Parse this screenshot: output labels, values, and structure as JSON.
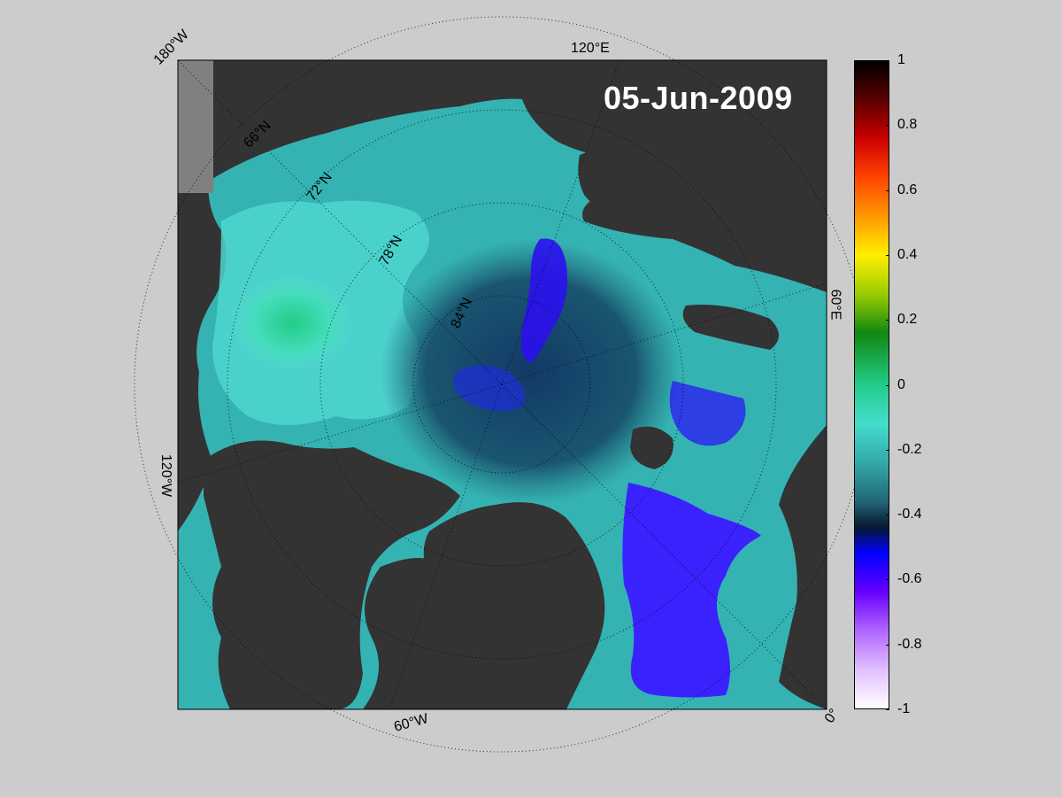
{
  "map": {
    "date": "05-Jun-2009",
    "longitude_labels": {
      "w180": "180°W",
      "e120": "120°E",
      "e60": "60°E",
      "w120": "120°W",
      "w60": "60°W",
      "zero": "0°"
    },
    "latitude_labels": {
      "n66": "66°N",
      "n72": "72°N",
      "n78": "78°N",
      "n84": "84°N"
    },
    "colors": {
      "land": "#333333",
      "background": "#cccccc",
      "out_of_domain": "#808080"
    }
  },
  "colorbar": {
    "ticks": [
      "1",
      "0.8",
      "0.6",
      "0.4",
      "0.2",
      "0",
      "-0.2",
      "-0.4",
      "-0.6",
      "-0.8",
      "-1"
    ],
    "min": -1,
    "max": 1,
    "colors_top_to_bottom": [
      "#000000",
      "#660000",
      "#ff0000",
      "#ff8800",
      "#ffcc00",
      "#ffff00",
      "#88cc00",
      "#008800",
      "#00cc66",
      "#33ddbb",
      "#33cccc",
      "#226677",
      "#000044",
      "#0000ff",
      "#8800ff",
      "#cc99ff",
      "#ffffff"
    ]
  }
}
